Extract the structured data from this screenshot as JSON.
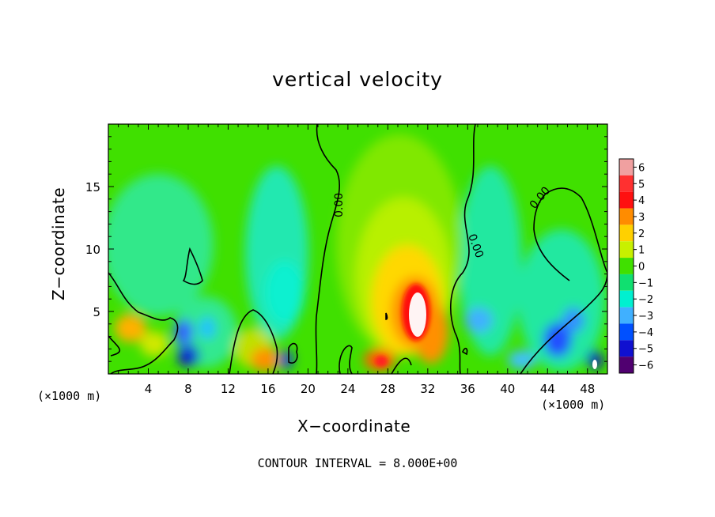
{
  "chart_data": {
    "type": "heatmap",
    "title": "vertical velocity",
    "xlabel": "X−coordinate",
    "ylabel": "Z−coordinate",
    "x_unit_left": "(×1000 m)",
    "x_unit_right": "(×1000 m)",
    "footer": "CONTOUR INTERVAL = 8.000E+00",
    "xlim": [
      0,
      50
    ],
    "ylim": [
      0,
      20
    ],
    "x_ticks": [
      "4",
      "8",
      "12",
      "16",
      "20",
      "24",
      "28",
      "32",
      "36",
      "40",
      "44",
      "48"
    ],
    "y_ticks": [
      "5",
      "10",
      "15"
    ],
    "contour_labels": [
      "0.00",
      "0.00",
      "0.00"
    ],
    "colorbar": {
      "ticks": [
        "6",
        "5",
        "4",
        "3",
        "2",
        "1",
        "0",
        "−1",
        "−2",
        "−3",
        "−4",
        "−5",
        "−6"
      ],
      "range": [
        -6,
        6
      ],
      "colors": [
        "#f0a0a0",
        "#ff3030",
        "#ff1010",
        "#ff8c00",
        "#ffd000",
        "#c8f000",
        "#40e000",
        "#10e070",
        "#00f0d0",
        "#40b0ff",
        "#0050ff",
        "#1010d0",
        "#500070"
      ]
    },
    "features": [
      {
        "name": "updraft core",
        "x": 30.5,
        "z": 5.0,
        "value": 6
      },
      {
        "name": "downdraft",
        "x": 8,
        "z": 1.5,
        "value": -5
      },
      {
        "name": "downdraft",
        "x": 44.5,
        "z": 2.5,
        "value": -4
      },
      {
        "name": "downdraft",
        "x": 48.5,
        "z": 0.8,
        "value": -5
      }
    ]
  }
}
